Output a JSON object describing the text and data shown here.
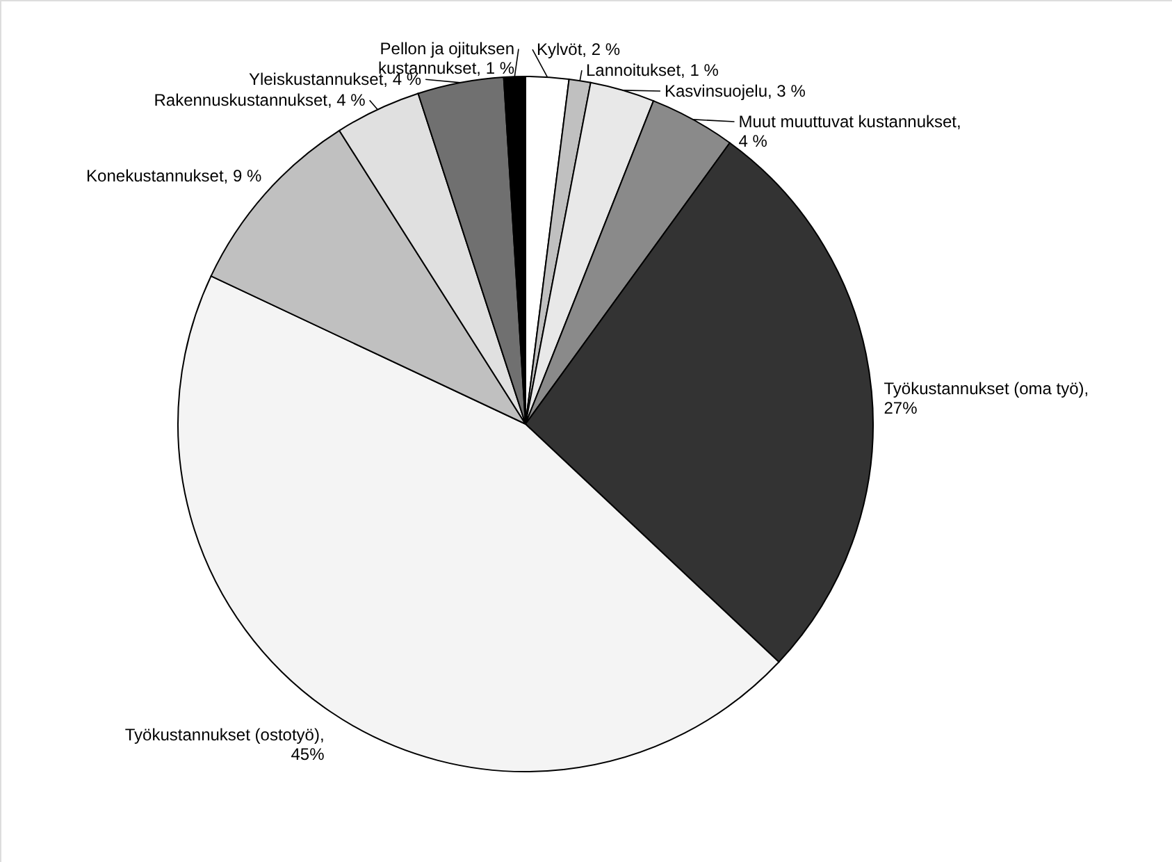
{
  "chart_data": {
    "type": "pie",
    "categories": [
      "Kylvöt, 2 %",
      "Lannoitukset, 1 %",
      "Kasvinsuojelu, 3 %",
      "Muut muuttuvat kustannukset, 4 %",
      "Työkustannukset (oma työ), 27%",
      "Työkustannukset (ostotyö), 45%",
      "Konekustannukset, 9 %",
      "Rakennuskustannukset, 4 %",
      "Yleiskustannukset, 4 %",
      "Pellon ja ojituksen kustannukset, 1 %"
    ],
    "values": [
      2,
      1,
      3,
      4,
      27,
      45,
      9,
      4,
      4,
      1
    ],
    "colors": [
      "#ffffff",
      "#c0c0c0",
      "#e8e8e8",
      "#8a8a8a",
      "#333333",
      "#f4f4f4",
      "#c0c0c0",
      "#e0e0e0",
      "#707070",
      "#000000"
    ]
  }
}
